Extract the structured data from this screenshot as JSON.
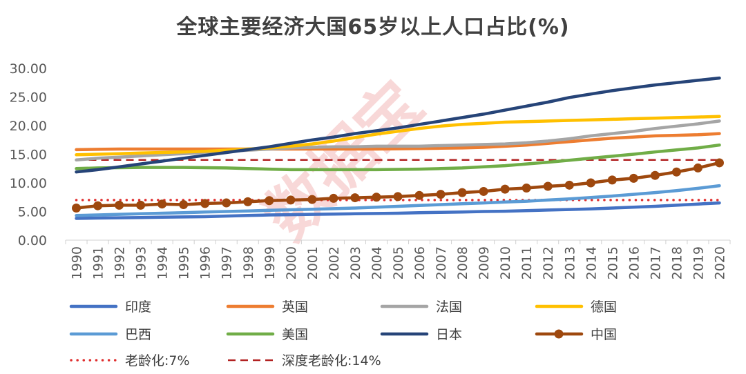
{
  "chart_data": {
    "type": "line",
    "title": "全球主要经济大国65岁以上人口占比(%)",
    "xlabel": "",
    "ylabel": "",
    "ylim": [
      0,
      30
    ],
    "yticks": [
      "0.00",
      "5.00",
      "10.00",
      "15.00",
      "20.00",
      "25.00",
      "30.00"
    ],
    "grid": false,
    "legend_position": "bottom",
    "watermark": "数据宝",
    "categories": [
      "1990",
      "1991",
      "1992",
      "1993",
      "1994",
      "1995",
      "1996",
      "1997",
      "1998",
      "1999",
      "2000",
      "2001",
      "2002",
      "2003",
      "2004",
      "2005",
      "2006",
      "2007",
      "2008",
      "2009",
      "2010",
      "2011",
      "2012",
      "2013",
      "2014",
      "2015",
      "2016",
      "2017",
      "2018",
      "2019",
      "2020"
    ],
    "series": [
      {
        "name": "印度",
        "color": "#4472C4",
        "style": "solid",
        "values": [
          3.8,
          3.85,
          3.9,
          3.95,
          4.0,
          4.05,
          4.1,
          4.2,
          4.3,
          4.4,
          4.45,
          4.5,
          4.55,
          4.6,
          4.65,
          4.7,
          4.8,
          4.85,
          4.9,
          5.0,
          5.05,
          5.15,
          5.25,
          5.35,
          5.45,
          5.6,
          5.75,
          5.9,
          6.1,
          6.3,
          6.5
        ]
      },
      {
        "name": "英国",
        "color": "#ED7D31",
        "style": "solid",
        "values": [
          15.8,
          15.85,
          15.9,
          15.9,
          15.9,
          15.9,
          15.9,
          15.9,
          15.9,
          15.9,
          15.9,
          15.9,
          15.9,
          15.9,
          15.9,
          15.95,
          16.0,
          16.05,
          16.1,
          16.2,
          16.4,
          16.6,
          16.9,
          17.2,
          17.5,
          17.8,
          18.0,
          18.2,
          18.3,
          18.4,
          18.6
        ]
      },
      {
        "name": "法国",
        "color": "#A5A5A5",
        "style": "solid",
        "values": [
          14.0,
          14.3,
          14.5,
          14.7,
          14.9,
          15.1,
          15.3,
          15.5,
          15.7,
          15.9,
          16.1,
          16.2,
          16.3,
          16.3,
          16.4,
          16.4,
          16.4,
          16.5,
          16.6,
          16.7,
          16.8,
          17.0,
          17.3,
          17.7,
          18.2,
          18.6,
          19.0,
          19.5,
          19.9,
          20.3,
          20.8
        ]
      },
      {
        "name": "德国",
        "color": "#FFC000",
        "style": "solid",
        "values": [
          14.9,
          15.0,
          15.1,
          15.2,
          15.3,
          15.4,
          15.5,
          15.7,
          15.9,
          16.1,
          16.4,
          16.8,
          17.3,
          17.9,
          18.5,
          19.0,
          19.5,
          19.9,
          20.2,
          20.4,
          20.6,
          20.7,
          20.8,
          20.9,
          21.0,
          21.1,
          21.2,
          21.3,
          21.4,
          21.5,
          21.6
        ]
      },
      {
        "name": "巴西",
        "color": "#5B9BD5",
        "style": "solid",
        "values": [
          4.3,
          4.4,
          4.5,
          4.6,
          4.7,
          4.8,
          4.9,
          5.0,
          5.1,
          5.2,
          5.3,
          5.4,
          5.5,
          5.6,
          5.75,
          5.9,
          6.05,
          6.2,
          6.35,
          6.5,
          6.65,
          6.8,
          7.0,
          7.2,
          7.45,
          7.7,
          8.0,
          8.3,
          8.65,
          9.05,
          9.5
        ]
      },
      {
        "name": "美国",
        "color": "#70AD47",
        "style": "solid",
        "values": [
          12.5,
          12.6,
          12.65,
          12.7,
          12.7,
          12.7,
          12.65,
          12.6,
          12.5,
          12.4,
          12.3,
          12.3,
          12.3,
          12.3,
          12.3,
          12.35,
          12.4,
          12.5,
          12.6,
          12.8,
          13.0,
          13.3,
          13.6,
          13.95,
          14.3,
          14.65,
          15.0,
          15.4,
          15.75,
          16.1,
          16.6
        ]
      },
      {
        "name": "日本",
        "color": "#264478",
        "style": "solid",
        "values": [
          11.9,
          12.3,
          12.8,
          13.3,
          13.8,
          14.3,
          14.8,
          15.3,
          15.8,
          16.3,
          16.9,
          17.5,
          18.0,
          18.6,
          19.1,
          19.6,
          20.2,
          20.8,
          21.4,
          22.0,
          22.7,
          23.4,
          24.1,
          24.9,
          25.5,
          26.1,
          26.6,
          27.1,
          27.5,
          27.9,
          28.3
        ]
      },
      {
        "name": "中国",
        "color": "#9E480E",
        "style": "marker",
        "values": [
          5.6,
          6.0,
          6.1,
          6.1,
          6.3,
          6.2,
          6.4,
          6.5,
          6.7,
          6.9,
          7.0,
          7.1,
          7.3,
          7.4,
          7.5,
          7.6,
          7.8,
          8.0,
          8.3,
          8.5,
          8.9,
          9.1,
          9.4,
          9.6,
          10.0,
          10.5,
          10.8,
          11.3,
          11.9,
          12.6,
          13.5
        ]
      },
      {
        "name": "老龄化:7%",
        "color": "#E03030",
        "style": "dotted",
        "values": [
          7,
          7,
          7,
          7,
          7,
          7,
          7,
          7,
          7,
          7,
          7,
          7,
          7,
          7,
          7,
          7,
          7,
          7,
          7,
          7,
          7,
          7,
          7,
          7,
          7,
          7,
          7,
          7,
          7,
          7,
          7
        ]
      },
      {
        "name": "深度老龄化:14%",
        "color": "#B22222",
        "style": "dashed",
        "values": [
          14,
          14,
          14,
          14,
          14,
          14,
          14,
          14,
          14,
          14,
          14,
          14,
          14,
          14,
          14,
          14,
          14,
          14,
          14,
          14,
          14,
          14,
          14,
          14,
          14,
          14,
          14,
          14,
          14,
          14,
          14
        ]
      }
    ]
  }
}
